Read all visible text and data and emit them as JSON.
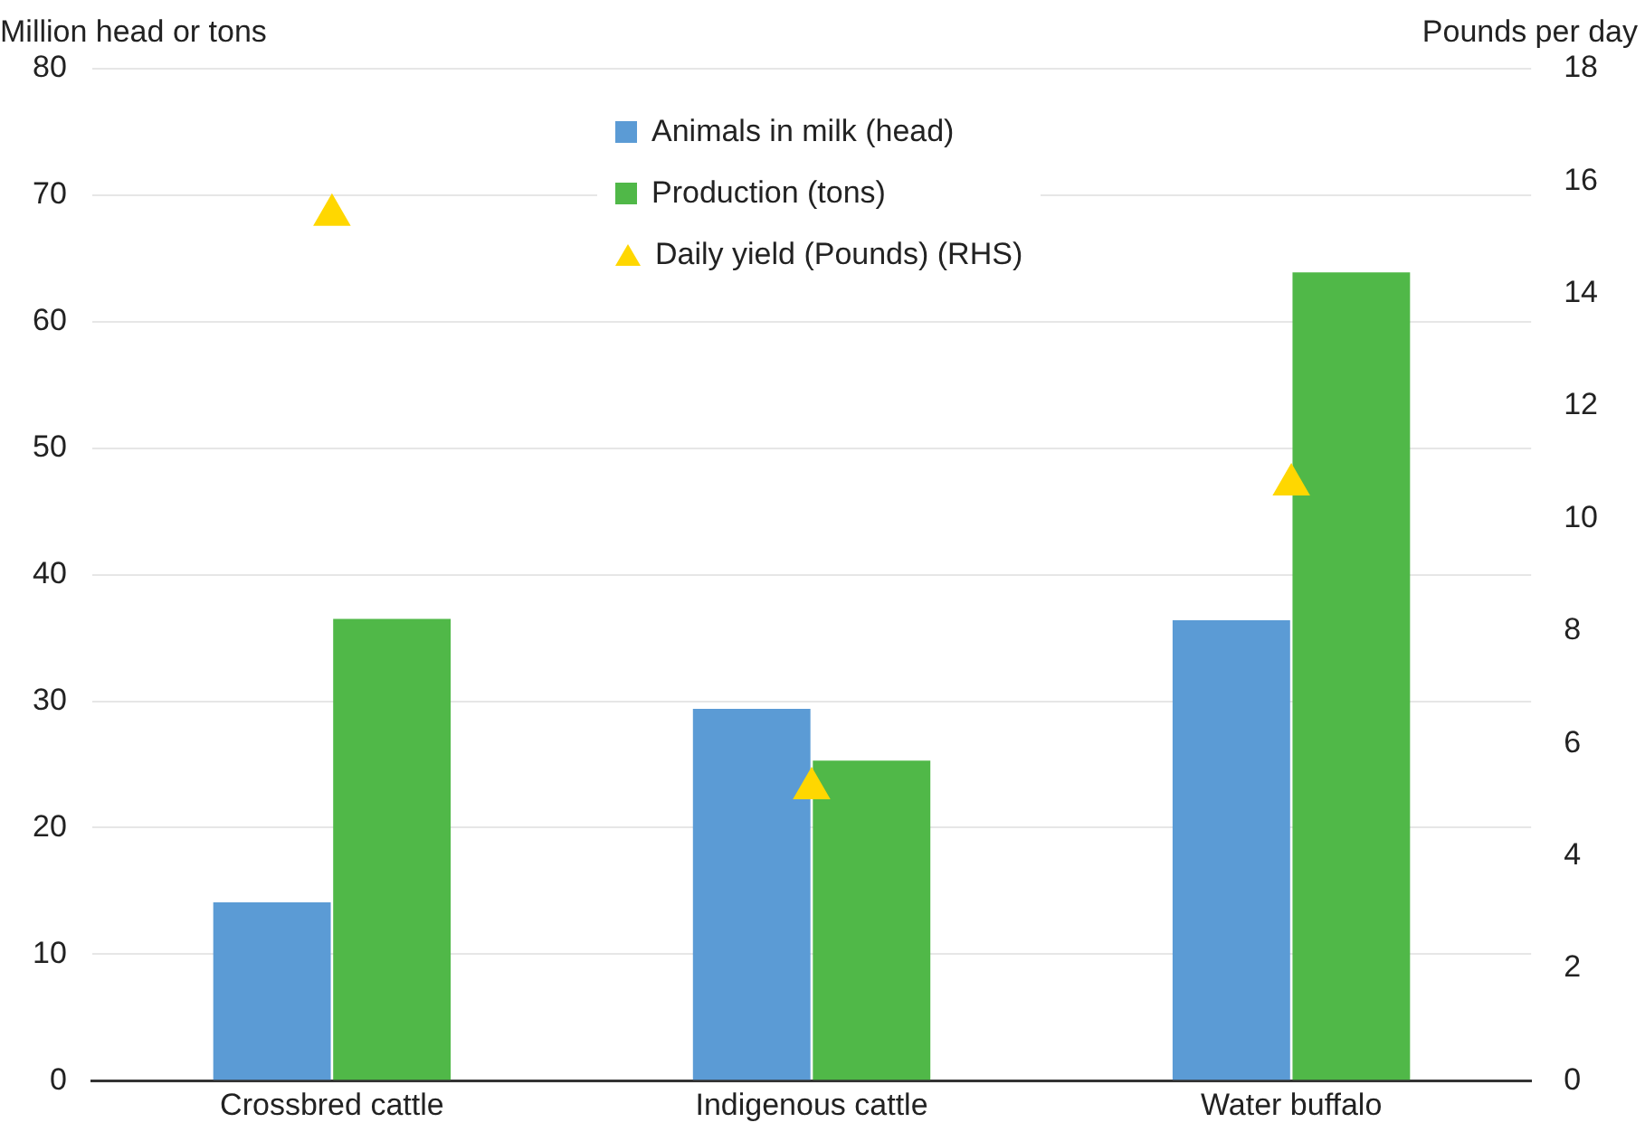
{
  "chart_data": {
    "type": "bar",
    "ylabel": "Million head or tons",
    "y2label": "Pounds per day",
    "categories": [
      "Crossbred cattle",
      "Indigenous cattle",
      "Water buffalo"
    ],
    "series": [
      {
        "name": "Animals in milk (head)",
        "color": "#5b9bd5",
        "values": [
          14.1,
          29.4,
          36.4
        ]
      },
      {
        "name": "Production (tons)",
        "color": "#50b848",
        "values": [
          36.5,
          25.3,
          63.9
        ]
      },
      {
        "name": "Daily yield (Pounds) (RHS)",
        "type": "scatter",
        "axis": "y2",
        "marker": "triangle",
        "color": "#ffd700",
        "x": [
          "Crossbred cattle",
          "Indigenous cattle",
          "Water buffalo"
        ],
        "values": [
          15.4,
          5.2,
          10.6
        ]
      }
    ],
    "ylim": [
      0,
      80
    ],
    "yticks": [
      0,
      10,
      20,
      30,
      40,
      50,
      60,
      70,
      80
    ],
    "y2lim": [
      0,
      18
    ],
    "y2ticks": [
      0,
      2,
      4,
      6,
      8,
      10,
      12,
      14,
      16,
      18
    ],
    "grid": "y",
    "legend": "top"
  }
}
